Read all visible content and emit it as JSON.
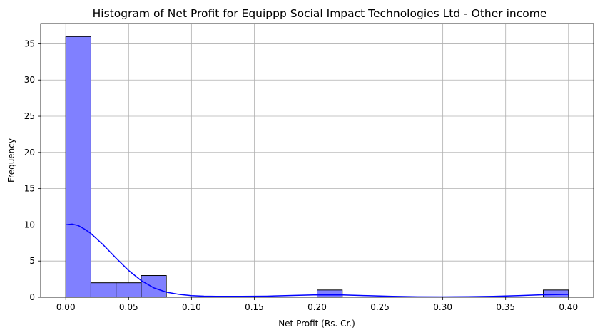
{
  "chart_data": {
    "type": "bar",
    "title": "Histogram of Net Profit for Equippp Social Impact Technologies Ltd - Other income",
    "xlabel": "Net Profit (Rs. Cr.)",
    "ylabel": "Frequency",
    "xlim": [
      -0.02,
      0.42
    ],
    "ylim": [
      0,
      37.8
    ],
    "grid": true,
    "x_ticks": [
      "0.00",
      "0.05",
      "0.10",
      "0.15",
      "0.20",
      "0.25",
      "0.30",
      "0.35",
      "0.40"
    ],
    "y_ticks": [
      "0",
      "5",
      "10",
      "15",
      "20",
      "25",
      "30",
      "35"
    ],
    "bins": [
      {
        "x0": 0.0,
        "x1": 0.02,
        "count": 36
      },
      {
        "x0": 0.02,
        "x1": 0.04,
        "count": 2
      },
      {
        "x0": 0.04,
        "x1": 0.06,
        "count": 2
      },
      {
        "x0": 0.06,
        "x1": 0.08,
        "count": 3
      },
      {
        "x0": 0.2,
        "x1": 0.22,
        "count": 1
      },
      {
        "x0": 0.38,
        "x1": 0.4,
        "count": 1
      }
    ],
    "kde": {
      "x": [
        0.0,
        0.005,
        0.01,
        0.015,
        0.02,
        0.03,
        0.04,
        0.05,
        0.06,
        0.07,
        0.08,
        0.09,
        0.1,
        0.11,
        0.12,
        0.14,
        0.16,
        0.18,
        0.2,
        0.22,
        0.24,
        0.26,
        0.28,
        0.3,
        0.32,
        0.34,
        0.36,
        0.38,
        0.4
      ],
      "y": [
        10.0,
        10.1,
        9.9,
        9.4,
        8.8,
        7.2,
        5.4,
        3.7,
        2.3,
        1.3,
        0.7,
        0.4,
        0.22,
        0.15,
        0.12,
        0.12,
        0.15,
        0.25,
        0.33,
        0.32,
        0.22,
        0.12,
        0.06,
        0.05,
        0.07,
        0.12,
        0.22,
        0.34,
        0.4
      ]
    },
    "colors": {
      "bar_fill": "#8080ff",
      "bar_edge": "#000000",
      "kde_line": "#0000ff",
      "grid": "#b0b0b0"
    }
  }
}
